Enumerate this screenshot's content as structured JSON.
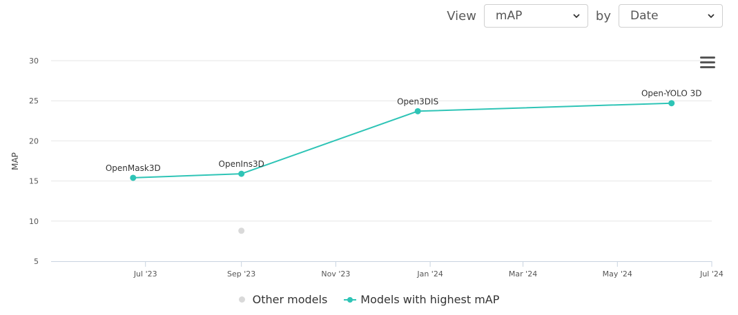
{
  "controls": {
    "view_label": "View",
    "metric_value": "mAP",
    "by_label": "by",
    "order_value": "Date"
  },
  "legend": {
    "other": "Other models",
    "best": "Models with highest mAP"
  },
  "colors": {
    "best_series": "#2ec4b6",
    "other_series": "#d9d9d9",
    "grid": "#e6e6e6"
  },
  "chart_data": {
    "type": "line",
    "ylabel": "MAP",
    "ylim": [
      5,
      30
    ],
    "yticks": [
      5,
      10,
      15,
      20,
      25,
      30
    ],
    "xlim": [
      "2023-05-01",
      "2024-07-01"
    ],
    "xticks": [
      {
        "date": "2023-07-01",
        "label": "Jul '23"
      },
      {
        "date": "2023-09-01",
        "label": "Sep '23"
      },
      {
        "date": "2023-11-01",
        "label": "Nov '23"
      },
      {
        "date": "2024-01-01",
        "label": "Jan '24"
      },
      {
        "date": "2024-03-01",
        "label": "Mar '24"
      },
      {
        "date": "2024-05-01",
        "label": "May '24"
      },
      {
        "date": "2024-07-01",
        "label": "Jul '24"
      }
    ],
    "series": [
      {
        "name": "Models with highest mAP",
        "points": [
          {
            "date": "2023-06-23",
            "value": 15.4,
            "label": "OpenMask3D"
          },
          {
            "date": "2023-09-01",
            "value": 15.9,
            "label": "OpenIns3D"
          },
          {
            "date": "2023-12-24",
            "value": 23.7,
            "label": "Open3DIS"
          },
          {
            "date": "2024-06-05",
            "value": 24.7,
            "label": "Open-YOLO 3D"
          }
        ]
      },
      {
        "name": "Other models",
        "points": [
          {
            "date": "2023-09-01",
            "value": 8.8
          }
        ]
      }
    ],
    "grid": true,
    "legend_position": "bottom-center"
  }
}
